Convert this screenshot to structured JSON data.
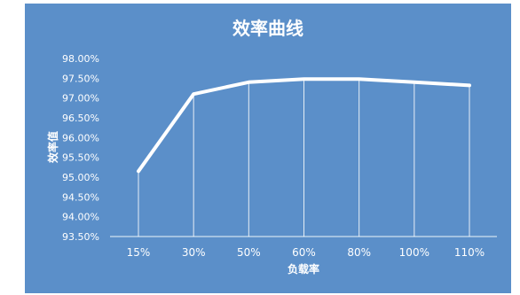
{
  "chart_data": {
    "type": "line",
    "title": "效率曲线",
    "xlabel": "负载率",
    "ylabel": "效率值",
    "categories": [
      "15%",
      "30%",
      "50%",
      "60%",
      "80%",
      "100%",
      "110%"
    ],
    "series": [
      {
        "values": [
          95.15,
          97.1,
          97.4,
          97.48,
          97.48,
          97.4,
          97.32
        ]
      }
    ],
    "ylim": [
      93.5,
      98.0
    ],
    "yticks": [
      "93.50%",
      "94.00%",
      "94.50%",
      "95.00%",
      "95.50%",
      "96.00%",
      "96.50%",
      "97.00%",
      "97.50%",
      "98.00%"
    ],
    "grid": false,
    "legend": "none",
    "colors": {
      "background": "#5b8fc9",
      "line": "#ffffff",
      "text": "#ffffff"
    }
  }
}
